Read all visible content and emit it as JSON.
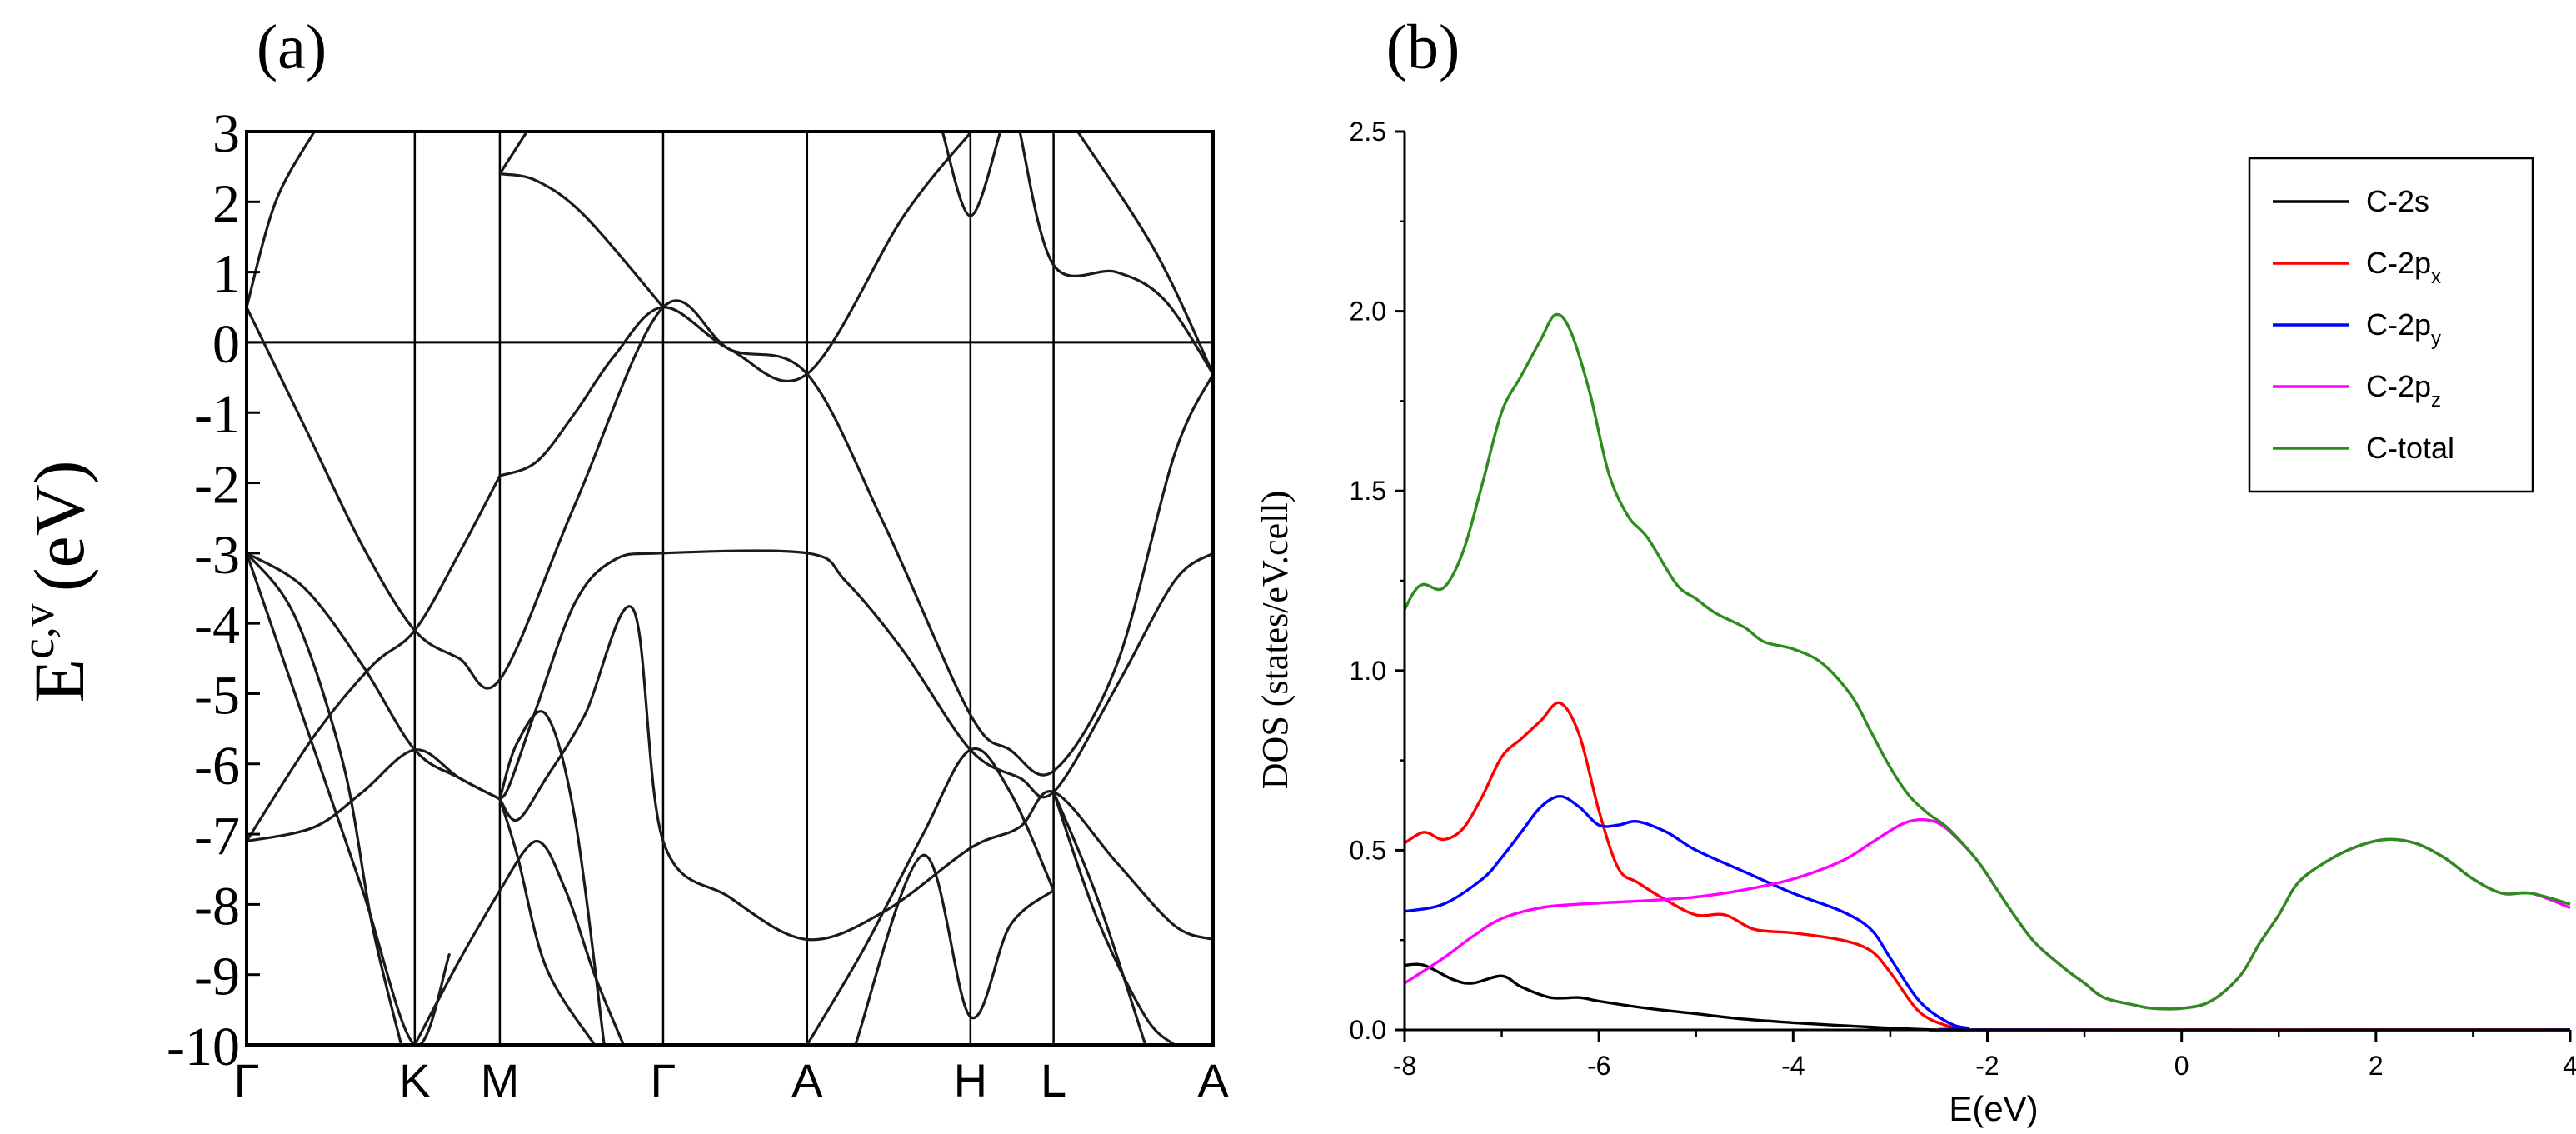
{
  "chart_data": [
    {
      "type": "line",
      "panel_label": "(a)",
      "ylabel": {
        "symbol": "E",
        "superscript": "c,v",
        "unit": "(eV)"
      },
      "ylim": [
        -10,
        3
      ],
      "ytick_labels": [
        "3",
        "2",
        "1",
        "0",
        "-1",
        "-2",
        "-3",
        "-4",
        "-5",
        "-6",
        "-7",
        "-8",
        "-9",
        "-10"
      ],
      "kpoints": [
        "Γ",
        "K",
        "M",
        "Γ",
        "A",
        "H",
        "L",
        "A"
      ],
      "kpoint_positions": [
        0,
        0.174,
        0.262,
        0.431,
        0.58,
        0.749,
        0.835,
        1.0
      ],
      "fermi_level": 0,
      "bands": [
        {
          "name": "band-1",
          "x": [
            0,
            0.03,
            0.07
          ],
          "y": [
            0.5,
            2.0,
            3.0
          ]
        },
        {
          "name": "band-2",
          "x": [
            0,
            0.06,
            0.12,
            0.174,
            0.22,
            0.262,
            0.34,
            0.431,
            0.5,
            0.58,
            0.68,
            0.75
          ],
          "y": [
            0.5,
            -1.2,
            -2.9,
            -4.1,
            -4.5,
            -4.8,
            -2.3,
            0.5,
            -0.1,
            -0.45,
            1.8,
            3.0
          ]
        },
        {
          "name": "band-3",
          "x": [
            0,
            0.06,
            0.12,
            0.174,
            0.21
          ],
          "y": [
            -3.0,
            -5.4,
            -7.8,
            -10.0,
            -8.7
          ]
        },
        {
          "name": "band-4",
          "x": [
            0,
            0.05,
            0.1,
            0.13,
            0.16
          ],
          "y": [
            -3.0,
            -3.9,
            -6.0,
            -8.3,
            -10.0
          ]
        },
        {
          "name": "band-5",
          "x": [
            0,
            0.06,
            0.12,
            0.174,
            0.22,
            0.262
          ],
          "y": [
            -3.0,
            -3.5,
            -4.6,
            -5.8,
            -6.2,
            -6.5
          ]
        },
        {
          "name": "band-6",
          "x": [
            0,
            0.07,
            0.12,
            0.174,
            0.22,
            0.262
          ],
          "y": [
            -7.1,
            -6.9,
            -6.4,
            -5.8,
            -6.2,
            -6.5
          ]
        },
        {
          "name": "band-7",
          "x": [
            0,
            0.07,
            0.13,
            0.174,
            0.22,
            0.262
          ],
          "y": [
            -7.1,
            -5.6,
            -4.6,
            -4.1,
            -3.0,
            -1.9
          ]
        },
        {
          "name": "band-8",
          "x": [
            0.174,
            0.22,
            0.262
          ],
          "y": [
            -10.0,
            -8.8,
            -7.8
          ]
        },
        {
          "name": "band-9",
          "x": [
            0.262,
            0.3,
            0.34,
            0.38,
            0.431,
            0.5,
            0.58,
            0.66,
            0.749,
            0.79,
            0.835,
            0.9,
            0.96,
            1.0
          ],
          "y": [
            -1.9,
            -1.7,
            -1.0,
            -0.2,
            0.5,
            -0.1,
            -0.45,
            -2.6,
            -5.3,
            -5.8,
            -6.1,
            -4.6,
            -1.6,
            -0.45
          ]
        },
        {
          "name": "band-10",
          "x": [
            0.262,
            0.272,
            0.3,
            0.34,
            0.38,
            0.431,
            0.58,
            0.62,
            0.68,
            0.749,
            0.8,
            0.835,
            0.9,
            0.96,
            1.0
          ],
          "y": [
            -6.5,
            -6.3,
            -5.2,
            -3.7,
            -3.1,
            -3.0,
            -3.0,
            -3.4,
            -4.4,
            -5.8,
            -6.2,
            -6.4,
            -4.9,
            -3.4,
            -3.0
          ]
        },
        {
          "name": "band-11",
          "x": [
            0.262,
            0.28,
            0.31,
            0.34,
            0.37
          ],
          "y": [
            -6.5,
            -5.7,
            -5.3,
            -6.8,
            -10.0
          ]
        },
        {
          "name": "band-12",
          "x": [
            0.262,
            0.28,
            0.31,
            0.36
          ],
          "y": [
            -6.5,
            -7.3,
            -8.9,
            -10.0
          ]
        },
        {
          "name": "band-13",
          "x": [
            0.262,
            0.3,
            0.33,
            0.36,
            0.39
          ],
          "y": [
            -7.8,
            -7.1,
            -7.8,
            -9.0,
            -10.0
          ]
        },
        {
          "name": "band-14",
          "x": [
            0.262,
            0.28,
            0.31,
            0.35,
            0.4,
            0.431,
            0.5,
            0.58,
            0.66,
            0.749,
            0.8,
            0.835,
            0.9,
            0.96,
            1.0
          ],
          "y": [
            -6.5,
            -6.8,
            -6.2,
            -5.3,
            -3.8,
            -7.1,
            -7.9,
            -8.5,
            -8.1,
            -7.2,
            -6.9,
            -6.4,
            -7.4,
            -8.3,
            -8.5
          ]
        },
        {
          "name": "band-15",
          "x": [
            0.262,
            0.3,
            0.35,
            0.431
          ],
          "y": [
            2.4,
            2.3,
            1.8,
            0.5
          ]
        },
        {
          "name": "band-16",
          "x": [
            0.262,
            0.29
          ],
          "y": [
            2.4,
            3.0
          ]
        },
        {
          "name": "band-17",
          "x": [
            0.58,
            0.64,
            0.7,
            0.749,
            0.79,
            0.835
          ],
          "y": [
            -10.0,
            -8.6,
            -7.0,
            -5.8,
            -6.4,
            -7.8
          ]
        },
        {
          "name": "band-18",
          "x": [
            0.63,
            0.7,
            0.749,
            0.79,
            0.835
          ],
          "y": [
            -10.0,
            -7.3,
            -9.6,
            -8.3,
            -7.8
          ]
        },
        {
          "name": "band-19",
          "x": [
            0.835,
            0.88,
            0.93,
            0.96
          ],
          "y": [
            -6.4,
            -8.2,
            -9.6,
            -10.0
          ]
        },
        {
          "name": "band-20",
          "x": [
            0.835,
            0.88,
            0.93
          ],
          "y": [
            -6.4,
            -7.9,
            -10.0
          ]
        },
        {
          "name": "band-21",
          "x": [
            0.72,
            0.749,
            0.78
          ],
          "y": [
            3.0,
            1.8,
            3.0
          ]
        },
        {
          "name": "band-22",
          "x": [
            0.8,
            0.835,
            0.9,
            0.95,
            1.0
          ],
          "y": [
            3.0,
            1.1,
            1.0,
            0.6,
            -0.45
          ]
        },
        {
          "name": "band-23",
          "x": [
            0.86,
            0.94,
            1.0
          ],
          "y": [
            3.0,
            1.3,
            -0.45
          ]
        }
      ]
    },
    {
      "type": "line",
      "panel_label": "(b)",
      "xlabel": "E(eV)",
      "ylabel": "DOS (states/eV.cell)",
      "xlim": [
        -8,
        4
      ],
      "ylim": [
        0,
        2.5
      ],
      "xtick_labels": [
        "-8",
        "-6",
        "-4",
        "-2",
        "0",
        "2",
        "4"
      ],
      "ytick_labels": [
        "0.0",
        "0.5",
        "1.0",
        "1.5",
        "2.0",
        "2.5"
      ],
      "legend_position": "top-right",
      "series": [
        {
          "name": "C-2s",
          "legend_main": "C-2s",
          "legend_sub": "",
          "color": "#000000",
          "x": [
            -8,
            -7.8,
            -7.5,
            -7.3,
            -7.0,
            -6.8,
            -6.5,
            -6.2,
            -6.0,
            -5.5,
            -5.0,
            -4.5,
            -4.0,
            -3.5,
            -3.0,
            -2.5,
            -2.0,
            4
          ],
          "y": [
            0.18,
            0.18,
            0.14,
            0.13,
            0.15,
            0.12,
            0.09,
            0.09,
            0.08,
            0.06,
            0.045,
            0.03,
            0.02,
            0.012,
            0.005,
            0.0,
            0.0,
            0.0
          ]
        },
        {
          "name": "C-2px",
          "legend_main": "C-2p",
          "legend_sub": "x",
          "color": "#ff0000",
          "x": [
            -8,
            -7.8,
            -7.6,
            -7.4,
            -7.2,
            -7.0,
            -6.8,
            -6.6,
            -6.4,
            -6.2,
            -6.0,
            -5.8,
            -5.6,
            -5.3,
            -5.0,
            -4.7,
            -4.4,
            -4.0,
            -3.5,
            -3.2,
            -3.0,
            -2.7,
            -2.4,
            -2.2,
            -2.0,
            4
          ],
          "y": [
            0.52,
            0.55,
            0.53,
            0.56,
            0.65,
            0.76,
            0.81,
            0.86,
            0.91,
            0.82,
            0.61,
            0.45,
            0.41,
            0.36,
            0.32,
            0.32,
            0.28,
            0.27,
            0.25,
            0.22,
            0.16,
            0.05,
            0.01,
            0.0,
            0.0,
            0.0
          ]
        },
        {
          "name": "C-2py",
          "legend_main": "C-2p",
          "legend_sub": "y",
          "color": "#0000ff",
          "x": [
            -8,
            -7.6,
            -7.2,
            -7.0,
            -6.8,
            -6.6,
            -6.4,
            -6.2,
            -6.0,
            -5.8,
            -5.6,
            -5.3,
            -5.0,
            -4.5,
            -4.0,
            -3.5,
            -3.2,
            -3.0,
            -2.7,
            -2.4,
            -2.2,
            -2.0,
            4
          ],
          "y": [
            0.33,
            0.35,
            0.42,
            0.48,
            0.55,
            0.62,
            0.65,
            0.62,
            0.57,
            0.57,
            0.58,
            0.55,
            0.5,
            0.44,
            0.38,
            0.33,
            0.28,
            0.2,
            0.08,
            0.02,
            0.005,
            0.0,
            0.0
          ]
        },
        {
          "name": "C-2pz",
          "legend_main": "C-2p",
          "legend_sub": "z",
          "color": "#ff00ff",
          "x": [
            -8,
            -7.6,
            -7.3,
            -7.0,
            -6.6,
            -6.2,
            -5.5,
            -5.0,
            -4.5,
            -4.0,
            -3.5,
            -3.2,
            -2.9,
            -2.7,
            -2.5,
            -2.3,
            -2.1,
            -1.9,
            -1.7,
            -1.5,
            -1.2,
            -1.0,
            -0.8,
            -0.5,
            -0.3,
            0.0,
            0.3,
            0.6,
            0.8,
            1.0,
            1.2,
            1.5,
            1.8,
            2.1,
            2.4,
            2.7,
            3.0,
            3.3,
            3.6,
            4.0
          ],
          "y": [
            0.13,
            0.2,
            0.26,
            0.31,
            0.34,
            0.35,
            0.36,
            0.37,
            0.39,
            0.42,
            0.47,
            0.52,
            0.57,
            0.585,
            0.575,
            0.53,
            0.47,
            0.39,
            0.31,
            0.24,
            0.17,
            0.13,
            0.09,
            0.07,
            0.06,
            0.06,
            0.08,
            0.15,
            0.24,
            0.32,
            0.41,
            0.47,
            0.51,
            0.53,
            0.52,
            0.48,
            0.42,
            0.38,
            0.38,
            0.34
          ]
        },
        {
          "name": "C-total",
          "legend_main": "C-total",
          "legend_sub": "",
          "color": "#2e8b1e",
          "x": [
            -8,
            -7.9,
            -7.8,
            -7.6,
            -7.4,
            -7.2,
            -7.0,
            -6.8,
            -6.6,
            -6.45,
            -6.3,
            -6.1,
            -5.9,
            -5.7,
            -5.5,
            -5.2,
            -5.0,
            -4.8,
            -4.5,
            -4.3,
            -4.0,
            -3.7,
            -3.4,
            -3.2,
            -3.0,
            -2.8,
            -2.6,
            -2.4,
            -2.1,
            -1.9,
            -1.7,
            -1.5,
            -1.2,
            -1.0,
            -0.8,
            -0.5,
            -0.3,
            0.0,
            0.3,
            0.6,
            0.8,
            1.0,
            1.2,
            1.5,
            1.8,
            2.1,
            2.4,
            2.7,
            3.0,
            3.3,
            3.6,
            4.0
          ],
          "y": [
            1.17,
            1.22,
            1.24,
            1.23,
            1.33,
            1.52,
            1.72,
            1.82,
            1.92,
            1.99,
            1.95,
            1.78,
            1.55,
            1.43,
            1.37,
            1.24,
            1.2,
            1.16,
            1.12,
            1.08,
            1.06,
            1.02,
            0.93,
            0.83,
            0.73,
            0.65,
            0.6,
            0.56,
            0.47,
            0.39,
            0.31,
            0.24,
            0.17,
            0.13,
            0.09,
            0.07,
            0.06,
            0.06,
            0.08,
            0.15,
            0.24,
            0.32,
            0.41,
            0.47,
            0.51,
            0.53,
            0.52,
            0.48,
            0.42,
            0.38,
            0.38,
            0.35
          ]
        }
      ]
    }
  ]
}
